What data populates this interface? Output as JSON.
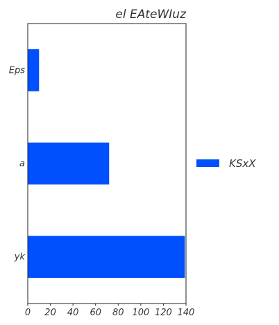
{
  "chart_data": {
    "type": "bar",
    "orientation": "horizontal",
    "title": "el EAteWIuz",
    "xlabel": "",
    "ylabel": "",
    "categories": [
      "Eps",
      "a",
      "yk"
    ],
    "series": [
      {
        "name": "KSxX",
        "values": [
          10,
          72,
          139
        ]
      }
    ],
    "xlim": [
      0,
      140
    ],
    "xticks": [
      0,
      20,
      40,
      60,
      80,
      100,
      120,
      140
    ],
    "grid": false,
    "legend_position": "right",
    "colors": {
      "bar": "#0050ff",
      "axis": "#222222",
      "text": "#333333"
    }
  }
}
